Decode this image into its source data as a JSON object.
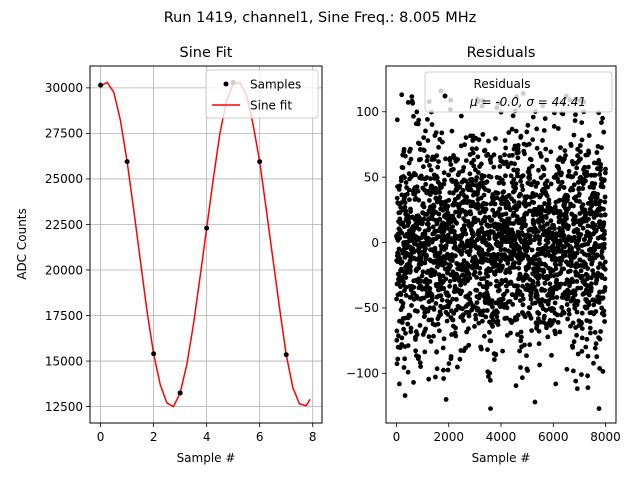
{
  "suptitle": "Run 1419, channel1, Sine Freq.: 8.005 MHz",
  "chart_data": [
    {
      "type": "line",
      "title": "Sine Fit",
      "xlabel": "Sample #",
      "ylabel": "ADC Counts",
      "xlim": [
        -0.4,
        8.35
      ],
      "ylim": [
        11600,
        31200
      ],
      "xticks": [
        0,
        2,
        4,
        6,
        8
      ],
      "yticks": [
        12500,
        15000,
        17500,
        20000,
        22500,
        25000,
        27500,
        30000
      ],
      "xtick_labels": [
        "0",
        "2",
        "4",
        "6",
        "8"
      ],
      "ytick_labels": [
        "12500",
        "15000",
        "17500",
        "20000",
        "22500",
        "25000",
        "27500",
        "30000"
      ],
      "grid": true,
      "legend_position": "top-right",
      "series": [
        {
          "name": "Samples",
          "kind": "scatter",
          "color": "#000000",
          "x": [
            0,
            1,
            2,
            3,
            4,
            5,
            6,
            7
          ],
          "y": [
            30150,
            25950,
            15400,
            13250,
            22300,
            30300,
            25950,
            15350
          ]
        },
        {
          "name": "Sine fit",
          "kind": "line",
          "color": "#ff0000",
          "x": [
            0,
            0.25,
            0.5,
            0.75,
            1,
            1.25,
            1.5,
            1.75,
            2,
            2.25,
            2.5,
            2.75,
            3,
            3.25,
            3.5,
            3.75,
            4,
            4.25,
            4.5,
            4.75,
            5,
            5.25,
            5.5,
            5.75,
            6,
            6.25,
            6.5,
            6.75,
            7,
            7.25,
            7.5,
            7.75,
            7.9
          ],
          "y": [
            30100,
            30300,
            29750,
            28200,
            25950,
            23300,
            20500,
            17750,
            15400,
            13700,
            12700,
            12500,
            13250,
            14800,
            17000,
            19600,
            22300,
            25000,
            27500,
            29300,
            30200,
            30300,
            29600,
            28000,
            25950,
            23300,
            20600,
            17900,
            15350,
            13550,
            12650,
            12550,
            12900
          ]
        }
      ]
    },
    {
      "type": "scatter",
      "title": "Residuals",
      "xlabel": "Sample #",
      "xlim": [
        -400,
        8400
      ],
      "ylim": [
        -138,
        135
      ],
      "xticks": [
        0,
        2000,
        4000,
        6000,
        8000
      ],
      "yticks": [
        -100,
        -50,
        0,
        50,
        100
      ],
      "xtick_labels": [
        "0",
        "2000",
        "4000",
        "6000",
        "8000"
      ],
      "ytick_labels": [
        "−100",
        "−50",
        "0",
        "50",
        "100"
      ],
      "grid": false,
      "legend_position": "top-right",
      "legend_title": "Residuals",
      "legend_entry": "μ = -0.0, σ = 44.41",
      "mean": -0.0,
      "std": 44.41,
      "n_points": 8000,
      "series": [
        {
          "name": "Residuals",
          "color": "#000000",
          "x": [
            200,
            330,
            1700,
            1900,
            3600,
            4850,
            5300,
            6500,
            7750
          ],
          "y": [
            113,
            -117,
            116,
            -120,
            -127,
            114,
            -122,
            112,
            -127
          ]
        }
      ]
    }
  ]
}
